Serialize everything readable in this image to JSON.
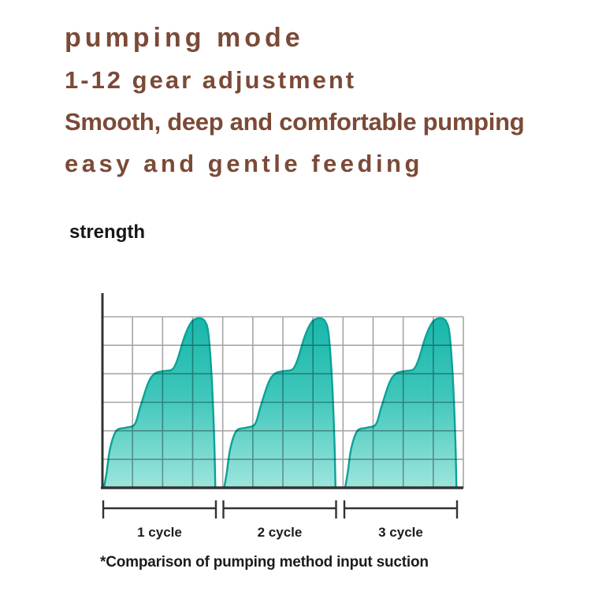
{
  "page": {
    "background": "#ffffff"
  },
  "header": {
    "text_color": "#7b4a37",
    "title": "pumping mode",
    "line2": "1-12 gear adjustment",
    "line3": "Smooth, deep and comfortable pumping",
    "line4": "easy and gentle feeding"
  },
  "chart_data": {
    "type": "area",
    "title": "",
    "ylabel": "strength",
    "xlabel": "",
    "legend": "none",
    "categories": [
      "1 cycle",
      "2 cycle",
      "3 cycle"
    ],
    "cycles": 3,
    "grid": {
      "visible": true,
      "columns": 12,
      "rows": 6
    },
    "y_range_normalized": [
      0,
      1
    ],
    "waveform_profile_xy": [
      [
        0.007,
        0.0
      ],
      [
        0.03,
        0.09
      ],
      [
        0.06,
        0.23
      ],
      [
        0.115,
        0.335
      ],
      [
        0.2,
        0.355
      ],
      [
        0.28,
        0.375
      ],
      [
        0.33,
        0.48
      ],
      [
        0.4,
        0.62
      ],
      [
        0.46,
        0.675
      ],
      [
        0.55,
        0.69
      ],
      [
        0.615,
        0.7
      ],
      [
        0.66,
        0.76
      ],
      [
        0.72,
        0.89
      ],
      [
        0.78,
        0.975
      ],
      [
        0.84,
        1.0
      ],
      [
        0.9,
        0.985
      ],
      [
        0.935,
        0.9
      ],
      [
        0.965,
        0.62
      ],
      [
        0.985,
        0.28
      ],
      [
        0.995,
        0.0
      ]
    ],
    "colors": {
      "wave_top": "#19b7ab",
      "wave_mid": "#3ec6ba",
      "wave_bottom": "#9ce5dc",
      "wave_stroke": "#0ca296",
      "axis": "#333333",
      "grid": "#a6a6a6",
      "label": "#1c1c1c"
    }
  },
  "footnote": "*Comparison of pumping method input suction"
}
